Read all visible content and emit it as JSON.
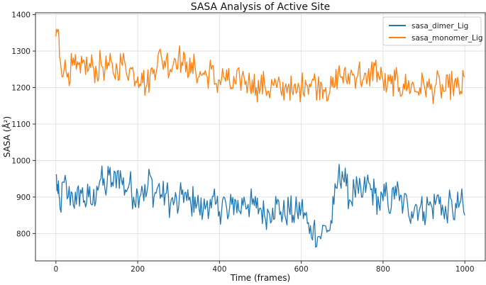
{
  "chart_data": {
    "type": "line",
    "title": "SASA Analysis of Active Site",
    "xlabel": "Time (frames)",
    "ylabel": "SASA (Å²)",
    "xlim": [
      -50,
      1050
    ],
    "ylim": [
      725,
      1405
    ],
    "xticks": [
      0,
      200,
      400,
      600,
      800,
      1000
    ],
    "xtick_labels": [
      "0",
      "200",
      "400",
      "600",
      "800",
      "1000"
    ],
    "yticks": [
      800,
      900,
      1000,
      1100,
      1200,
      1300,
      1400
    ],
    "ytick_labels": [
      "800",
      "900",
      "1000",
      "1100",
      "1200",
      "1300",
      "1400"
    ],
    "grid": true,
    "legend_position": "top-right",
    "series": [
      {
        "name": "sasa_dimer_Lig",
        "color": "#1f77b4",
        "x": [
          0,
          5,
          10,
          20,
          30,
          40,
          50,
          60,
          70,
          80,
          90,
          100,
          110,
          120,
          130,
          140,
          150,
          160,
          170,
          180,
          190,
          200,
          210,
          220,
          230,
          240,
          250,
          260,
          270,
          280,
          290,
          300,
          310,
          320,
          330,
          340,
          350,
          360,
          370,
          380,
          390,
          400,
          410,
          420,
          430,
          440,
          450,
          460,
          470,
          480,
          490,
          500,
          510,
          520,
          530,
          540,
          550,
          560,
          570,
          580,
          590,
          600,
          610,
          620,
          630,
          640,
          650,
          660,
          670,
          680,
          690,
          700,
          710,
          720,
          730,
          740,
          750,
          760,
          770,
          780,
          790,
          800,
          810,
          820,
          830,
          840,
          850,
          860,
          870,
          880,
          890,
          900,
          910,
          920,
          930,
          940,
          950,
          960,
          970,
          980,
          990,
          1000
        ],
        "values": [
          960,
          910,
          870,
          940,
          900,
          910,
          880,
          920,
          890,
          900,
          880,
          930,
          950,
          920,
          960,
          930,
          970,
          950,
          920,
          940,
          900,
          910,
          930,
          900,
          960,
          900,
          930,
          900,
          910,
          880,
          890,
          870,
          920,
          890,
          880,
          900,
          870,
          860,
          890,
          870,
          880,
          860,
          900,
          840,
          880,
          890,
          860,
          900,
          880,
          880,
          870,
          870,
          850,
          860,
          870,
          880,
          860,
          850,
          870,
          850,
          860,
          870,
          850,
          800,
          820,
          790,
          800,
          820,
          810,
          880,
          950,
          970,
          930,
          890,
          920,
          910,
          900,
          940,
          920,
          910,
          880,
          890,
          910,
          870,
          930,
          890,
          880,
          880,
          860,
          880,
          870,
          860,
          880,
          870,
          890,
          900,
          840,
          880,
          860,
          870,
          890,
          850
        ]
      },
      {
        "name": "sasa_monomer_Lig",
        "color": "#ff7f0e",
        "x": [
          0,
          5,
          10,
          20,
          30,
          40,
          50,
          60,
          70,
          80,
          90,
          100,
          110,
          120,
          130,
          140,
          150,
          160,
          170,
          180,
          190,
          200,
          210,
          220,
          230,
          240,
          250,
          260,
          270,
          280,
          290,
          300,
          310,
          320,
          330,
          340,
          350,
          360,
          370,
          380,
          390,
          400,
          410,
          420,
          430,
          440,
          450,
          460,
          470,
          480,
          490,
          500,
          510,
          520,
          530,
          540,
          550,
          560,
          570,
          580,
          590,
          600,
          610,
          620,
          630,
          640,
          650,
          660,
          670,
          680,
          690,
          700,
          710,
          720,
          730,
          740,
          750,
          760,
          770,
          780,
          790,
          800,
          810,
          820,
          830,
          840,
          850,
          860,
          870,
          880,
          890,
          900,
          910,
          920,
          930,
          940,
          950,
          960,
          970,
          980,
          990,
          1000
        ],
        "values": [
          1340,
          1360,
          1280,
          1250,
          1240,
          1260,
          1250,
          1240,
          1270,
          1250,
          1260,
          1240,
          1270,
          1250,
          1260,
          1240,
          1250,
          1270,
          1260,
          1250,
          1240,
          1230,
          1240,
          1200,
          1230,
          1250,
          1290,
          1270,
          1280,
          1250,
          1280,
          1290,
          1260,
          1270,
          1240,
          1260,
          1230,
          1240,
          1230,
          1250,
          1210,
          1220,
          1230,
          1220,
          1200,
          1210,
          1220,
          1230,
          1210,
          1220,
          1200,
          1200,
          1210,
          1190,
          1210,
          1200,
          1190,
          1200,
          1210,
          1180,
          1190,
          1200,
          1220,
          1210,
          1220,
          1200,
          1210,
          1200,
          1190,
          1200,
          1240,
          1230,
          1220,
          1240,
          1230,
          1250,
          1220,
          1210,
          1240,
          1260,
          1230,
          1220,
          1200,
          1210,
          1220,
          1200,
          1210,
          1200,
          1210,
          1190,
          1200,
          1210,
          1200,
          1190,
          1210,
          1200,
          1190,
          1200,
          1210,
          1200,
          1190,
          1230
        ]
      }
    ]
  }
}
